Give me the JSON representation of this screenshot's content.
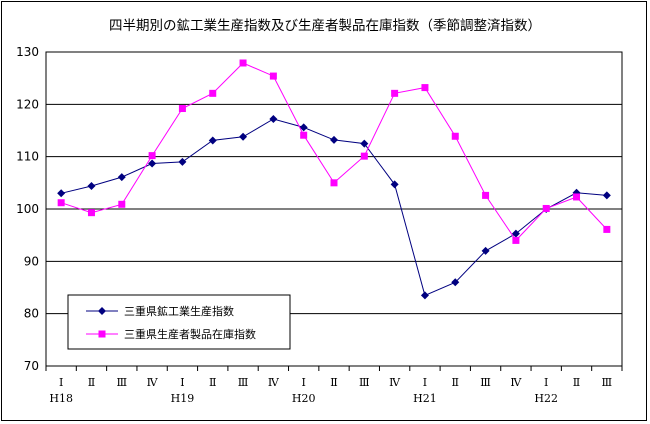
{
  "chart_data": {
    "type": "line",
    "title": "四半期別の鉱工業生産指数及び生産者製品在庫指数（季節調整済指数）",
    "xlabel": "",
    "ylabel": "",
    "ylim": [
      70,
      130
    ],
    "yticks": [
      70,
      80,
      90,
      100,
      110,
      120,
      130
    ],
    "grid": true,
    "legend_position": "bottom-left",
    "categories": [
      "Ⅰ",
      "Ⅱ",
      "Ⅲ",
      "Ⅳ",
      "Ⅰ",
      "Ⅱ",
      "Ⅲ",
      "Ⅳ",
      "Ⅰ",
      "Ⅱ",
      "Ⅲ",
      "Ⅳ",
      "Ⅰ",
      "Ⅱ",
      "Ⅲ",
      "Ⅳ",
      "Ⅰ",
      "Ⅱ",
      "Ⅲ"
    ],
    "year_groups": [
      {
        "label": "H18",
        "start_index": 0
      },
      {
        "label": "H19",
        "start_index": 4
      },
      {
        "label": "H20",
        "start_index": 8
      },
      {
        "label": "H21",
        "start_index": 12
      },
      {
        "label": "H22",
        "start_index": 16
      }
    ],
    "series": [
      {
        "name": "三重県鉱工業生産指数",
        "color": "#000080",
        "marker": "diamond",
        "values": [
          103.0,
          104.4,
          106.1,
          108.7,
          109.0,
          113.1,
          113.8,
          117.2,
          115.6,
          113.2,
          112.5,
          104.7,
          83.5,
          86.0,
          92.0,
          95.3,
          100.0,
          103.1,
          102.6
        ]
      },
      {
        "name": "三重県生産者製品在庫指数",
        "color": "#ff00ff",
        "marker": "square",
        "values": [
          101.2,
          99.3,
          100.9,
          110.2,
          119.2,
          122.1,
          127.9,
          125.4,
          114.1,
          105.0,
          110.1,
          122.1,
          123.2,
          113.9,
          102.6,
          94.0,
          100.1,
          102.3,
          96.1
        ]
      }
    ]
  }
}
